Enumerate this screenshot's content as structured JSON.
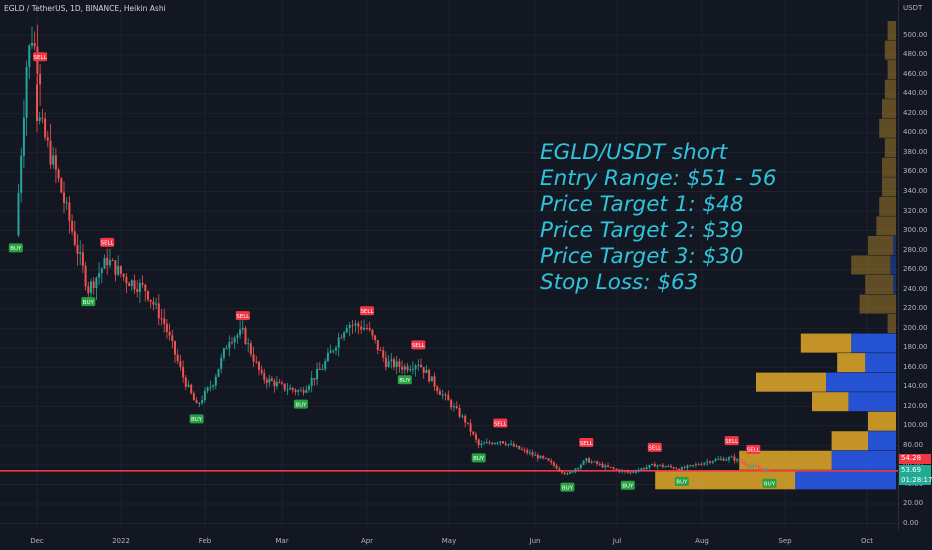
{
  "header": "EGLD / TetherUS, 1D, BINANCE, Heikin Ashi",
  "annotation": {
    "lines": [
      "EGLD/USDT short",
      "Entry Range: $51 - 56",
      "Price Target 1: $48",
      "Price Target 2: $39",
      "Price Target 3: $30",
      "Stop Loss: $63"
    ],
    "color": "#2ec4dc"
  },
  "price_axis": {
    "unit": "USDT",
    "labels": [
      "500.00",
      "480.00",
      "460.00",
      "440.00",
      "420.00",
      "400.00",
      "380.00",
      "360.00",
      "340.00",
      "320.00",
      "300.00",
      "280.00",
      "260.00",
      "240.00",
      "220.00",
      "200.00",
      "180.00",
      "160.00",
      "140.00",
      "120.00",
      "100.00",
      "80.00",
      "60.00",
      "40.00",
      "20.00",
      "0.00"
    ]
  },
  "time_axis": {
    "labels": [
      "Dec",
      "2022",
      "Feb",
      "Mar",
      "Apr",
      "May",
      "Jun",
      "Jul",
      "Aug",
      "Sep",
      "Oct"
    ]
  },
  "price_tags": {
    "upper": {
      "value": "54.28",
      "color": "#f23645"
    },
    "current": {
      "value": "53.69",
      "countdown": "01:28:17",
      "color": "#22ab94"
    }
  },
  "colors": {
    "up": "#26a69a",
    "down": "#ef5350",
    "background": "#131722",
    "sell": "#f23645",
    "buy": "#26a240",
    "hline": "#f23645",
    "vp_up": "#2962ff",
    "vp_down": "#f0b32b"
  },
  "chart_data": {
    "type": "candlestick",
    "style": "Heikin Ashi",
    "symbol": "EGLD / TetherUS",
    "exchange": "BINANCE",
    "interval": "1D",
    "ylim": [
      0,
      510
    ],
    "path": [
      {
        "x": "Nov 15",
        "y": 295
      },
      {
        "x": "Nov 19",
        "y": 470
      },
      {
        "x": "Nov 21",
        "y": 500
      },
      {
        "x": "Nov 24",
        "y": 460
      },
      {
        "x": "Dec 1",
        "y": 420
      },
      {
        "x": "Dec 8",
        "y": 360
      },
      {
        "x": "Dec 15",
        "y": 290
      },
      {
        "x": "Dec 20",
        "y": 240
      },
      {
        "x": "Dec 27",
        "y": 270
      },
      {
        "x": "Jan 3",
        "y": 250
      },
      {
        "x": "Jan 10",
        "y": 240
      },
      {
        "x": "Jan 17",
        "y": 205
      },
      {
        "x": "Jan 24",
        "y": 150
      },
      {
        "x": "Jan 29",
        "y": 120
      },
      {
        "x": "Feb 4",
        "y": 145
      },
      {
        "x": "Feb 10",
        "y": 190
      },
      {
        "x": "Feb 15",
        "y": 195
      },
      {
        "x": "Feb 22",
        "y": 150
      },
      {
        "x": "Mar 1",
        "y": 140
      },
      {
        "x": "Mar 8",
        "y": 135
      },
      {
        "x": "Mar 16",
        "y": 160
      },
      {
        "x": "Mar 25",
        "y": 205
      },
      {
        "x": "Apr 1",
        "y": 200
      },
      {
        "x": "Apr 8",
        "y": 165
      },
      {
        "x": "Apr 15",
        "y": 160
      },
      {
        "x": "Apr 20",
        "y": 165
      },
      {
        "x": "Apr 28",
        "y": 135
      },
      {
        "x": "May 7",
        "y": 105
      },
      {
        "x": "May 12",
        "y": 80
      },
      {
        "x": "May 20",
        "y": 85
      },
      {
        "x": "May 28",
        "y": 75
      },
      {
        "x": "Jun 5",
        "y": 65
      },
      {
        "x": "Jun 13",
        "y": 50
      },
      {
        "x": "Jun 20",
        "y": 65
      },
      {
        "x": "Jun 27",
        "y": 58
      },
      {
        "x": "Jul 5",
        "y": 52
      },
      {
        "x": "Jul 15",
        "y": 60
      },
      {
        "x": "Jul 25",
        "y": 56
      },
      {
        "x": "Aug 5",
        "y": 65
      },
      {
        "x": "Aug 12",
        "y": 67
      },
      {
        "x": "Aug 20",
        "y": 58
      },
      {
        "x": "Aug 26",
        "y": 54
      }
    ],
    "signals": [
      {
        "type": "BUY",
        "x": "Nov 15",
        "y": 295
      },
      {
        "type": "SELL",
        "x": "Nov 24",
        "y": 460
      },
      {
        "type": "SELL",
        "x": "Dec 27",
        "y": 270
      },
      {
        "type": "BUY",
        "x": "Dec 20",
        "y": 240
      },
      {
        "type": "SELL",
        "x": "Feb 15",
        "y": 195
      },
      {
        "type": "BUY",
        "x": "Jan 29",
        "y": 120
      },
      {
        "type": "BUY",
        "x": "Mar 8",
        "y": 135
      },
      {
        "type": "SELL",
        "x": "Apr 1",
        "y": 200
      },
      {
        "type": "BUY",
        "x": "Apr 15",
        "y": 160
      },
      {
        "type": "SELL",
        "x": "Apr 20",
        "y": 165
      },
      {
        "type": "BUY",
        "x": "May 12",
        "y": 80
      },
      {
        "type": "SELL",
        "x": "May 20",
        "y": 85
      },
      {
        "type": "BUY",
        "x": "Jun 13",
        "y": 50
      },
      {
        "type": "SELL",
        "x": "Jun 20",
        "y": 65
      },
      {
        "type": "BUY",
        "x": "Jul 5",
        "y": 52
      },
      {
        "type": "SELL",
        "x": "Jul 15",
        "y": 60
      },
      {
        "type": "BUY",
        "x": "Jul 25",
        "y": 56
      },
      {
        "type": "SELL",
        "x": "Aug 12",
        "y": 67
      },
      {
        "type": "SELL",
        "x": "Aug 20",
        "y": 58
      },
      {
        "type": "BUY",
        "x": "Aug 26",
        "y": 54
      }
    ],
    "horizontal_lines": [
      54.28,
      53.69
    ],
    "volume_profile": [
      {
        "price": 505,
        "up": 0.0,
        "down": 0.06
      },
      {
        "price": 485,
        "up": 0.0,
        "down": 0.08
      },
      {
        "price": 465,
        "up": 0.0,
        "down": 0.06
      },
      {
        "price": 445,
        "up": 0.0,
        "down": 0.08
      },
      {
        "price": 425,
        "up": 0.0,
        "down": 0.1
      },
      {
        "price": 405,
        "up": 0.0,
        "down": 0.12
      },
      {
        "price": 385,
        "up": 0.0,
        "down": 0.08
      },
      {
        "price": 365,
        "up": 0.0,
        "down": 0.1
      },
      {
        "price": 345,
        "up": 0.0,
        "down": 0.1
      },
      {
        "price": 325,
        "up": 0.0,
        "down": 0.12
      },
      {
        "price": 305,
        "up": 0.0,
        "down": 0.14
      },
      {
        "price": 285,
        "up": 0.02,
        "down": 0.18
      },
      {
        "price": 265,
        "up": 0.04,
        "down": 0.28
      },
      {
        "price": 245,
        "up": 0.02,
        "down": 0.2
      },
      {
        "price": 225,
        "up": 0.0,
        "down": 0.26
      },
      {
        "price": 205,
        "up": 0.0,
        "down": 0.06
      },
      {
        "price": 185,
        "up": 0.32,
        "down": 0.36
      },
      {
        "price": 165,
        "up": 0.22,
        "down": 0.2
      },
      {
        "price": 145,
        "up": 0.5,
        "down": 0.5
      },
      {
        "price": 125,
        "up": 0.34,
        "down": 0.26
      },
      {
        "price": 105,
        "up": 0.0,
        "down": 0.2
      },
      {
        "price": 85,
        "up": 0.2,
        "down": 0.26
      },
      {
        "price": 65,
        "up": 0.46,
        "down": 0.66
      },
      {
        "price": 45,
        "up": 0.72,
        "down": 1.0
      }
    ]
  }
}
